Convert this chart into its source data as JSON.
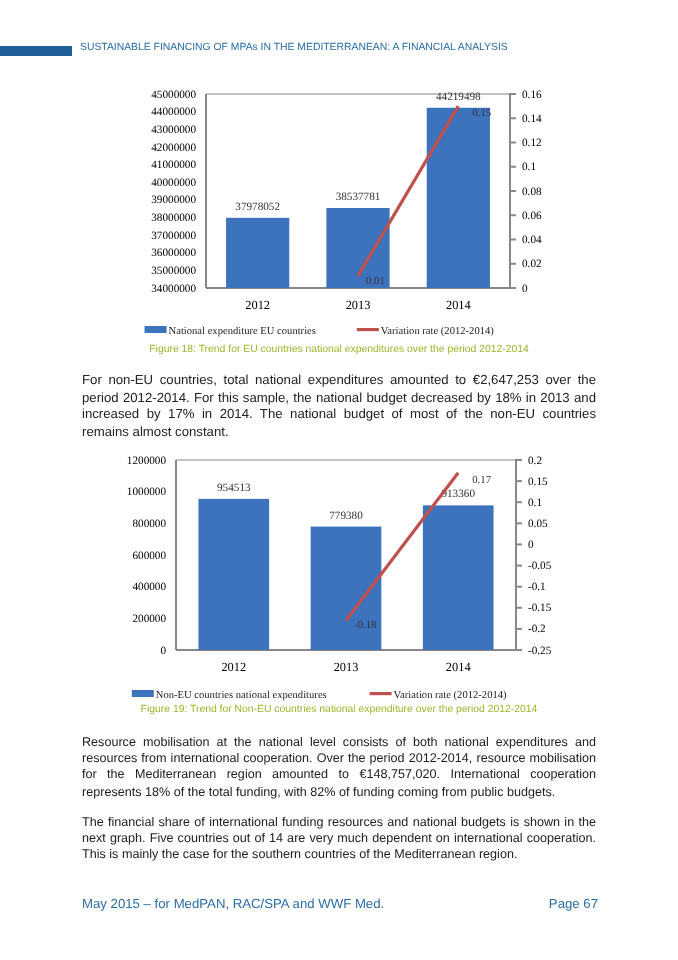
{
  "chart_data": [
    {
      "type": "bar",
      "categories": [
        "2012",
        "2013",
        "2014"
      ],
      "series": [
        {
          "name": "National expenditure EU countries",
          "color": "#3d72bd",
          "values": [
            37978052,
            38537781,
            44219498
          ]
        },
        {
          "name": "Variation rate (2012-2014)",
          "type": "line",
          "axis": "y2",
          "color": "#c0504d",
          "values": [
            null,
            0.01,
            0.15
          ]
        }
      ],
      "ylim": [
        34000000,
        45000000
      ],
      "yticks": [
        34000000,
        35000000,
        36000000,
        37000000,
        38000000,
        39000000,
        40000000,
        41000000,
        42000000,
        43000000,
        44000000,
        45000000
      ],
      "y2lim": [
        0,
        0.16
      ],
      "y2ticks": [
        0,
        0.02,
        0.04,
        0.06,
        0.08,
        0.1,
        0.12,
        0.14,
        0.16
      ],
      "data_labels": true,
      "legend": "bottom",
      "marker": "none",
      "annotations": [
        "SUSTAINABLE FINANCING OF MPAs IN THE MEDITERRANEAN: A FINANCIAL ANALYSIS",
        "Figure 18: Trend for EU countries national expenditures over the period 2012-2014",
        "For non-EU countries, total national expenditures amounted to €2,647,253 over the period 2012-2014. For this sample, the national budget decreased by 18% in 2013 and increased by 17% in 2014. The national budget of most of the non-EU countries remains almost constant."
      ]
    },
    {
      "type": "bar",
      "categories": [
        "2012",
        "2013",
        "2014"
      ],
      "series": [
        {
          "name": "Non-EU countries national expenditures",
          "color": "#3d72bd",
          "values": [
            954513,
            779380,
            913360
          ]
        },
        {
          "name": "Variation rate (2012-2014)",
          "type": "line",
          "axis": "y2",
          "color": "#c0504d",
          "values": [
            null,
            -0.18,
            0.17
          ]
        }
      ],
      "ylim": [
        0,
        1200000
      ],
      "yticks": [
        0,
        200000,
        400000,
        600000,
        800000,
        1000000,
        1200000
      ],
      "y2lim": [
        -0.25,
        0.2
      ],
      "y2ticks": [
        -0.25,
        -0.2,
        -0.15,
        -0.1,
        -0.05,
        0,
        0.05,
        0.1,
        0.15,
        0.2
      ],
      "data_labels": true,
      "legend": "bottom",
      "marker": "none",
      "annotations": [
        "Figure 19: Trend for Non-EU countries national expenditure over the period 2012-2014",
        "Resource mobilisation at the national level consists of both national expenditures and resources from international cooperation. Over the period 2012-2014, resource mobilisation for the Mediterranean region amounted to €148,757,020. International cooperation represents 18% of the total funding, with 82% of funding coming from public budgets.",
        "The financial share of international funding resources and national budgets is shown in the next graph. Five countries out of 14 are very much dependent on international cooperation. This is mainly the case for the southern countries of the Mediterranean region.",
        "May 2015 – for MedPAN, RAC/SPA and WWF Med.",
        "Page 67"
      ]
    }
  ]
}
